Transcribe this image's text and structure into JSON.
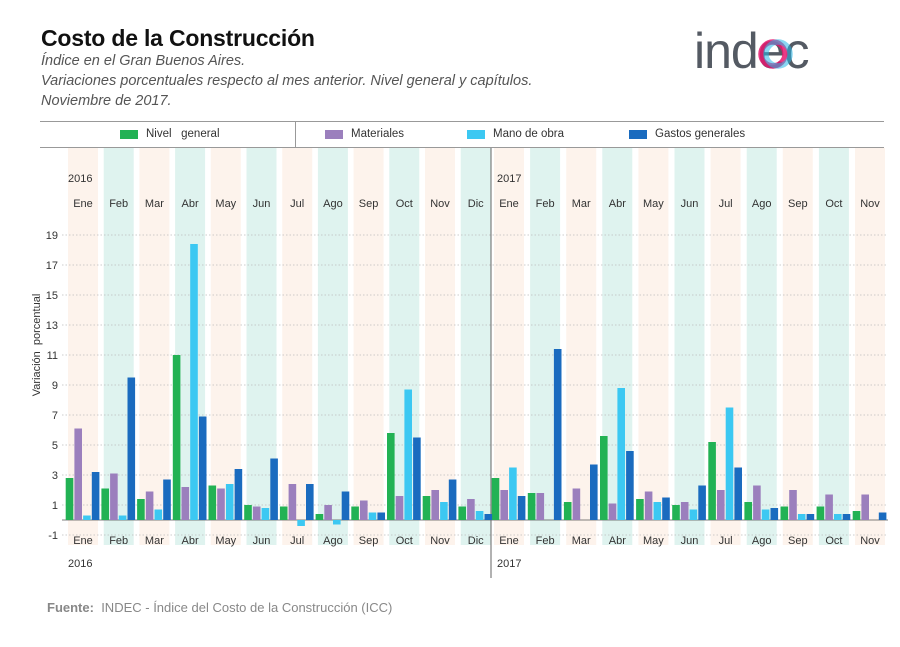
{
  "header": {
    "title": "Costo de la Construcción",
    "subtitle1": "Índice en el Gran Buenos Aires.",
    "subtitle2": "Variaciones porcentuales respecto al mes anterior. Nivel general y capítulos.",
    "subtitle3": "Noviembre de 2017.",
    "logo_text": "indec"
  },
  "source": {
    "label": "Fuente:",
    "text": "INDEC - Índice del Costo de la Construcción (ICC)"
  },
  "colors": {
    "nivel": "#22b254",
    "materiales": "#9b7fbd",
    "mano": "#3cc8f2",
    "gastos": "#1a6bbf",
    "band_a": "#fdf3ec",
    "band_b": "#dff3ef",
    "logo_gray": "#545a63",
    "logo_pink": "#e6176f",
    "logo_cyan": "#28b7e7"
  },
  "chart_data": {
    "type": "bar",
    "ylabel": "Variación  porcentual",
    "ylim": [
      -1.5,
      20
    ],
    "yticks": [
      -1,
      1,
      3,
      5,
      7,
      9,
      11,
      13,
      15,
      17,
      19
    ],
    "years": [
      "2016",
      "2017"
    ],
    "categories": [
      "Ene",
      "Feb",
      "Mar",
      "Abr",
      "May",
      "Jun",
      "Jul",
      "Ago",
      "Sep",
      "Oct",
      "Nov",
      "Dic",
      "Ene",
      "Feb",
      "Mar",
      "Abr",
      "May",
      "Jun",
      "Jul",
      "Ago",
      "Sep",
      "Oct",
      "Nov"
    ],
    "series": [
      {
        "name": "Nivel   general",
        "key": "nivel",
        "values": [
          2.8,
          2.1,
          1.4,
          11.0,
          2.3,
          1.0,
          0.9,
          0.4,
          0.9,
          5.8,
          1.6,
          0.9,
          2.8,
          1.8,
          1.2,
          5.6,
          1.4,
          1.0,
          5.2,
          1.2,
          0.9,
          0.9,
          0.6
        ]
      },
      {
        "name": "Materiales",
        "key": "materiales",
        "values": [
          6.1,
          3.1,
          1.9,
          2.2,
          2.1,
          0.9,
          2.4,
          1.0,
          1.3,
          1.6,
          2.0,
          1.4,
          2.0,
          1.8,
          2.1,
          1.1,
          1.9,
          1.2,
          2.0,
          2.3,
          2.0,
          1.7,
          1.7
        ]
      },
      {
        "name": "Mano de obra",
        "key": "mano",
        "values": [
          0.3,
          0.3,
          0.7,
          18.4,
          2.4,
          0.8,
          -0.4,
          -0.3,
          0.5,
          8.7,
          1.2,
          0.6,
          3.5,
          0.0,
          0.0,
          8.8,
          1.2,
          0.7,
          7.5,
          0.7,
          0.4,
          0.4,
          0.0
        ]
      },
      {
        "name": "Gastos generales",
        "key": "gastos",
        "values": [
          3.2,
          9.5,
          2.7,
          6.9,
          3.4,
          4.1,
          2.4,
          1.9,
          0.5,
          5.5,
          2.7,
          0.4,
          1.6,
          11.4,
          3.7,
          4.6,
          1.5,
          2.3,
          3.5,
          0.8,
          0.4,
          0.4,
          0.5
        ]
      }
    ]
  }
}
